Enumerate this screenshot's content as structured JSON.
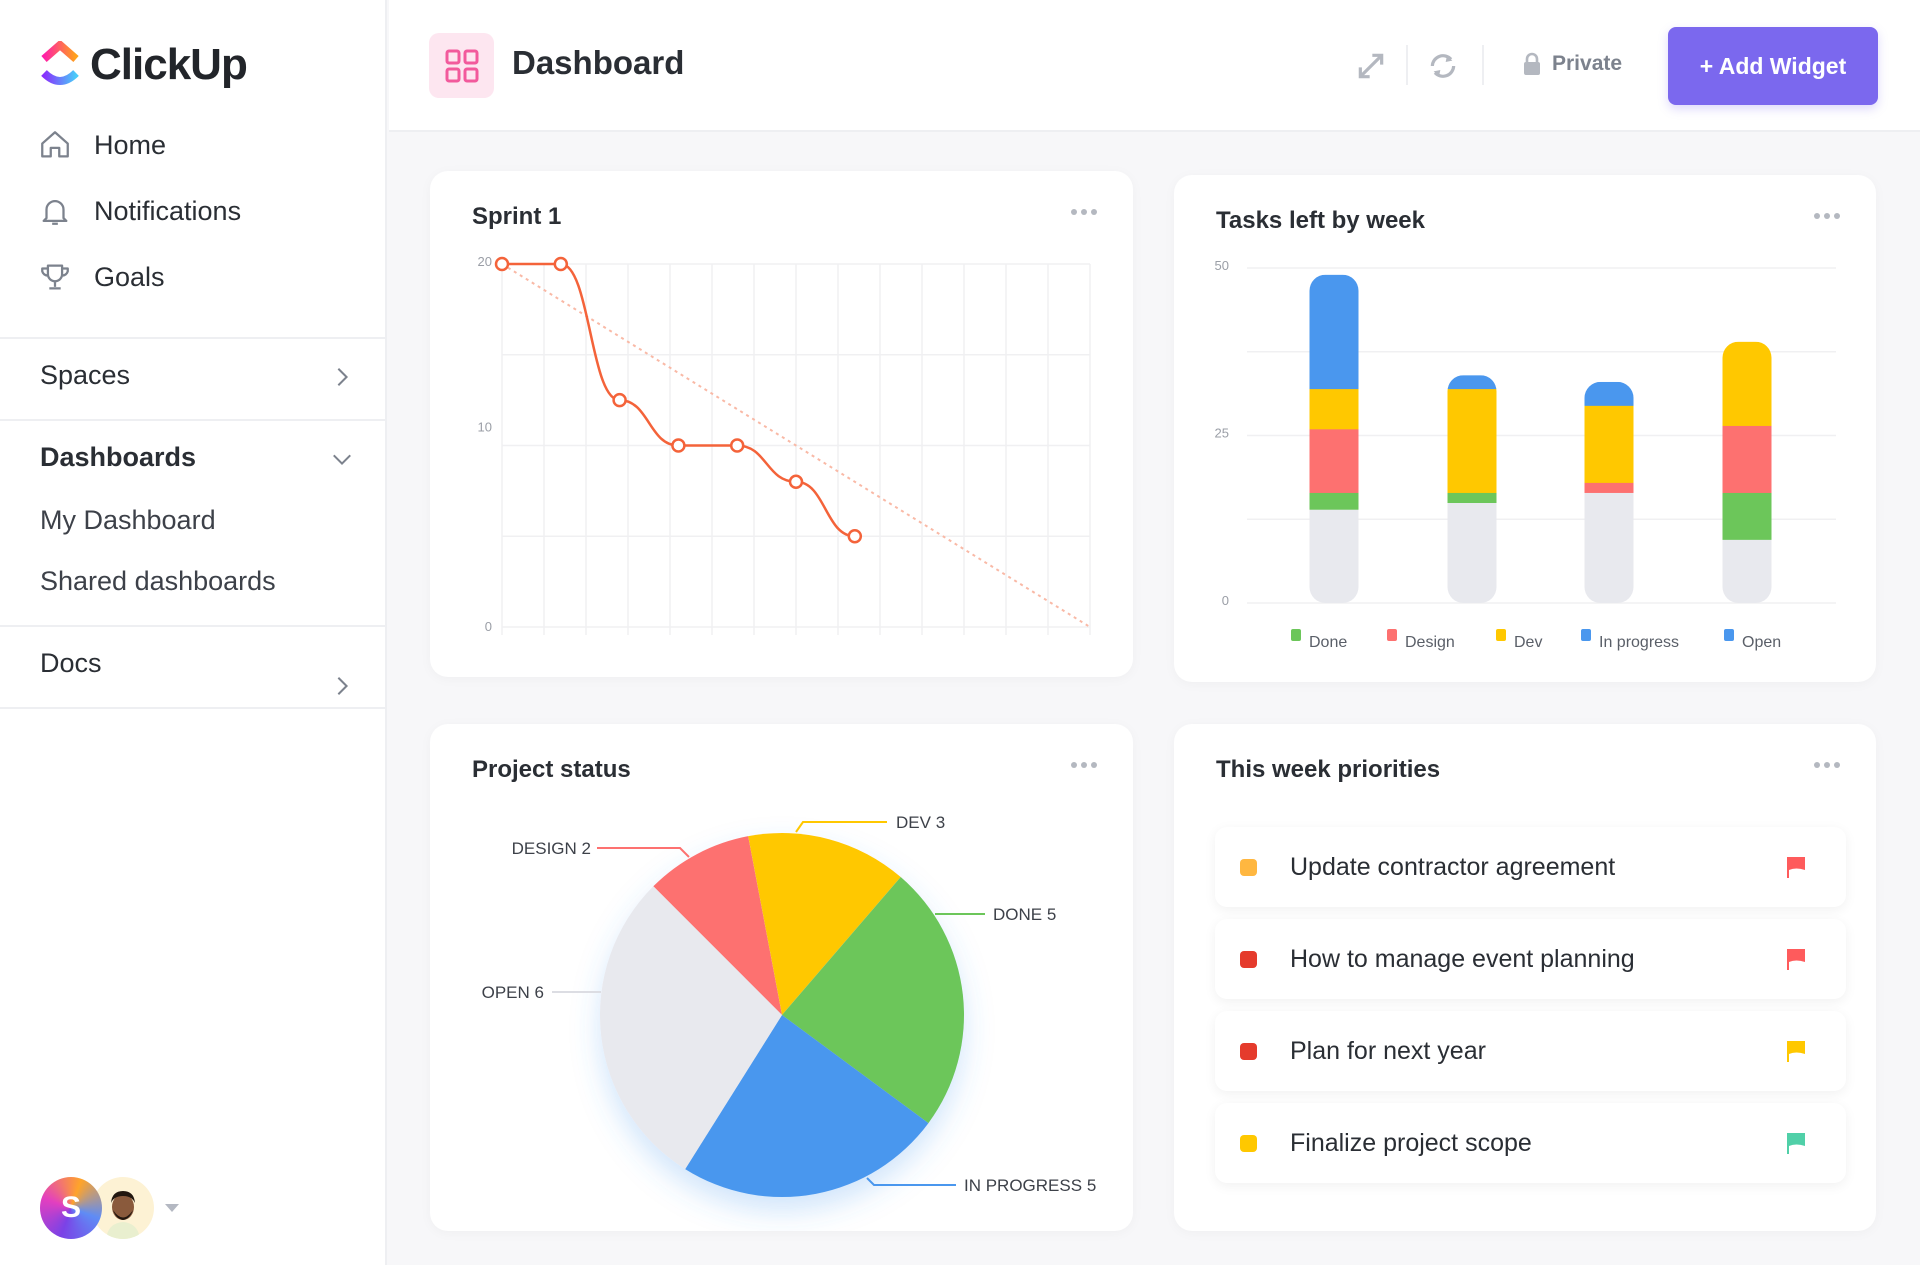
{
  "sidebar": {
    "brand": "ClickUp",
    "nav": [
      {
        "label": "Home",
        "icon": "home-icon"
      },
      {
        "label": "Notifications",
        "icon": "bell-icon"
      },
      {
        "label": "Goals",
        "icon": "trophy-icon"
      }
    ],
    "spaces": "Spaces",
    "dashboards": {
      "label": "Dashboards",
      "items": [
        "My Dashboard",
        "Shared dashboards"
      ]
    },
    "docs": "Docs",
    "avatar_initial": "S"
  },
  "header": {
    "title": "Dashboard",
    "privacy": "Private",
    "add_widget": "+ Add Widget",
    "accent": "#7b68ee"
  },
  "widgets": {
    "sprint": {
      "title": "Sprint 1"
    },
    "tasks": {
      "title": "Tasks left by week"
    },
    "status": {
      "title": "Project status"
    },
    "priorities": {
      "title": "This week priorities",
      "items": [
        {
          "label": "Update contractor agreement",
          "status_color": "#ffb740",
          "flag_color": "#fe5b5c"
        },
        {
          "label": "How to manage event planning",
          "status_color": "#e53b2c",
          "flag_color": "#fe5b5c"
        },
        {
          "label": "Plan for next year",
          "status_color": "#e53b2c",
          "flag_color": "#ffc800"
        },
        {
          "label": "Finalize project scope",
          "status_color": "#ffc800",
          "flag_color": "#50d0a8"
        }
      ]
    }
  },
  "chart_data": [
    {
      "type": "line",
      "title": "Sprint 1",
      "x": [
        0,
        1,
        2,
        3,
        4,
        5,
        6
      ],
      "y": [
        20,
        20,
        12.5,
        10,
        10,
        8,
        5
      ],
      "ideal": {
        "x": [
          0,
          10
        ],
        "y": [
          20,
          0
        ]
      },
      "xlim": [
        0,
        10
      ],
      "ylim": [
        0,
        20
      ],
      "yticks": [
        "0",
        "10",
        "20"
      ],
      "grid": true,
      "color": "#f4633a"
    },
    {
      "type": "bar",
      "stacked": true,
      "title": "Tasks left by week",
      "ylim": [
        0,
        50
      ],
      "yticks": [
        "0",
        "25",
        "50"
      ],
      "grid": true,
      "legend_position": "bottom",
      "series": [
        {
          "name": "Open",
          "values": [
            14,
            15,
            16.5,
            9.5
          ],
          "color": "#e8e9ee",
          "legend_color": "#4a97ee"
        },
        {
          "name": "Done",
          "values": [
            2.5,
            1.5,
            0,
            7
          ],
          "color": "#6cc65a",
          "legend_color": "#6cc65a"
        },
        {
          "name": "Design",
          "values": [
            9.5,
            0,
            1.5,
            10
          ],
          "color": "#fd7170",
          "legend_color": "#fd7170"
        },
        {
          "name": "Dev",
          "values": [
            6,
            15.5,
            11.5,
            12.5
          ],
          "color": "#ffc800",
          "legend_color": "#ffc800"
        },
        {
          "name": "In progress",
          "values": [
            17,
            2,
            3.5,
            0
          ],
          "color": "#4a97ee",
          "legend_color": "#4a97ee"
        }
      ],
      "legend_order": [
        "Done",
        "Design",
        "Dev",
        "In progress",
        "Open"
      ]
    },
    {
      "type": "pie",
      "title": "Project status",
      "slices": [
        {
          "label": "DESIGN",
          "value": 2,
          "color": "#fd7170"
        },
        {
          "label": "DEV",
          "value": 3,
          "color": "#ffc800"
        },
        {
          "label": "DONE",
          "value": 5,
          "color": "#6cc65a"
        },
        {
          "label": "IN PROGRESS",
          "value": 5,
          "color": "#4a97ee"
        },
        {
          "label": "OPEN",
          "value": 6,
          "color": "#e8e9ee"
        }
      ]
    }
  ]
}
